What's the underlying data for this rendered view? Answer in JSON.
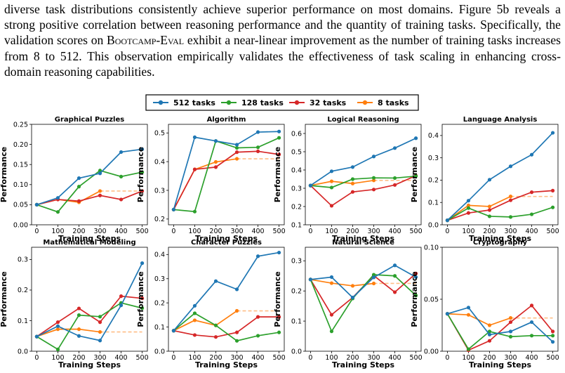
{
  "paragraph": {
    "p1": "diverse task distributions consistently achieve superior performance on most domains. Figure 5b reveals a strong positive correlation between reasoning performance and the quantity of training tasks. Specifically, the validation scores on ",
    "bench": "Bootcamp-Eval",
    "p2": " exhibit a near-linear improvement as the number of training tasks increases from 8 to 512. This observation empirically validates the effectiveness of task scaling in enhancing cross-domain reasoning capabilities."
  },
  "colors": {
    "512 tasks": "#1f77b4",
    "128 tasks": "#2ca02c",
    "32 tasks": "#d62728",
    "8 tasks": "#ff7f0e",
    "8 tasks dashed": "#ffbe86"
  },
  "legend": [
    "512 tasks",
    "128 tasks",
    "32 tasks",
    "8 tasks"
  ],
  "chart_data": [
    {
      "type": "line",
      "title": "Graphical Puzzles",
      "xlabel": "Training Steps",
      "ylabel": "Performance",
      "x": [
        0,
        100,
        200,
        300,
        400,
        500
      ],
      "xticks": [
        "0",
        "100",
        "200",
        "300",
        "400",
        "500"
      ],
      "ylim": [
        0,
        0.25
      ],
      "yticks": [
        "0.00",
        "0.05",
        "0.10",
        "0.15",
        "0.20",
        "0.25"
      ],
      "series": [
        {
          "name": "512 tasks",
          "values": [
            0.05,
            0.067,
            0.116,
            0.128,
            0.181,
            0.188
          ]
        },
        {
          "name": "128 tasks",
          "values": [
            0.05,
            0.032,
            0.095,
            0.135,
            0.12,
            0.131
          ]
        },
        {
          "name": "32 tasks",
          "values": [
            0.05,
            0.063,
            0.059,
            0.073,
            0.063,
            0.084
          ]
        },
        {
          "name": "8 tasks",
          "values": [
            0.05,
            0.063,
            0.056,
            0.084,
            null,
            null
          ],
          "plateau": 0.084
        }
      ]
    },
    {
      "type": "line",
      "title": "Algorithm",
      "xlabel": "Training Steps",
      "ylabel": "Performance",
      "x": [
        0,
        100,
        200,
        300,
        400,
        500
      ],
      "xticks": [
        "0",
        "100",
        "200",
        "300",
        "400",
        "500"
      ],
      "ylim": [
        0.18,
        0.53
      ],
      "yticks": [
        "0.2",
        "0.3",
        "0.4",
        "0.5"
      ],
      "series": [
        {
          "name": "512 tasks",
          "values": [
            0.233,
            0.485,
            0.472,
            0.459,
            0.503,
            0.505
          ]
        },
        {
          "name": "128 tasks",
          "values": [
            0.233,
            0.226,
            0.472,
            0.448,
            0.45,
            0.483
          ]
        },
        {
          "name": "32 tasks",
          "values": [
            0.233,
            0.373,
            0.381,
            0.433,
            0.436,
            0.425
          ]
        },
        {
          "name": "8 tasks",
          "values": [
            0.233,
            0.373,
            0.399,
            0.41,
            null,
            null
          ],
          "plateau": 0.41
        }
      ]
    },
    {
      "type": "line",
      "title": "Logical Reasoning",
      "xlabel": "Training Steps",
      "ylabel": "Performance",
      "x": [
        0,
        100,
        200,
        300,
        400,
        500
      ],
      "xticks": [
        "0",
        "100",
        "200",
        "300",
        "400",
        "500"
      ],
      "ylim": [
        0.1,
        0.65
      ],
      "yticks": [
        "0.1",
        "0.2",
        "0.3",
        "0.4",
        "0.5",
        "0.6"
      ],
      "series": [
        {
          "name": "512 tasks",
          "values": [
            0.315,
            0.393,
            0.416,
            0.474,
            0.52,
            0.574
          ]
        },
        {
          "name": "128 tasks",
          "values": [
            0.315,
            0.304,
            0.35,
            0.357,
            0.356,
            0.366
          ]
        },
        {
          "name": "32 tasks",
          "values": [
            0.315,
            0.204,
            0.28,
            0.293,
            0.318,
            0.369
          ]
        },
        {
          "name": "8 tasks",
          "values": [
            0.315,
            0.338,
            0.326,
            0.343,
            null,
            null
          ],
          "plateau": 0.343
        }
      ]
    },
    {
      "type": "line",
      "title": "Language Analysis",
      "xlabel": "Training Steps",
      "ylabel": "Performance",
      "x": [
        0,
        100,
        200,
        300,
        400,
        500
      ],
      "xticks": [
        "0",
        "100",
        "200",
        "300",
        "400",
        "500"
      ],
      "ylim": [
        0,
        0.45
      ],
      "yticks": [
        "0.0",
        "0.1",
        "0.2",
        "0.3",
        "0.4"
      ],
      "series": [
        {
          "name": "512 tasks",
          "values": [
            0.02,
            0.108,
            0.202,
            0.262,
            0.314,
            0.412
          ]
        },
        {
          "name": "128 tasks",
          "values": [
            0.02,
            0.075,
            0.038,
            0.035,
            0.047,
            0.078
          ]
        },
        {
          "name": "32 tasks",
          "values": [
            0.02,
            0.053,
            0.066,
            0.11,
            0.146,
            0.153
          ]
        },
        {
          "name": "8 tasks",
          "values": [
            0.02,
            0.087,
            0.082,
            0.127,
            null,
            null
          ],
          "plateau": 0.127
        }
      ]
    },
    {
      "type": "line",
      "title": "Mathematical Modeling",
      "xlabel": "Training Steps",
      "ylabel": "Performance",
      "x": [
        0,
        100,
        200,
        300,
        400,
        500
      ],
      "xticks": [
        "0",
        "100",
        "200",
        "300",
        "400",
        "500"
      ],
      "ylim": [
        0,
        0.34
      ],
      "yticks": [
        "0.0",
        "0.1",
        "0.2",
        "0.3"
      ],
      "series": [
        {
          "name": "512 tasks",
          "values": [
            0.048,
            0.082,
            0.05,
            0.035,
            0.15,
            0.288
          ]
        },
        {
          "name": "128 tasks",
          "values": [
            0.048,
            0.006,
            0.118,
            0.113,
            0.158,
            0.141
          ]
        },
        {
          "name": "32 tasks",
          "values": [
            0.048,
            0.095,
            0.14,
            0.095,
            0.18,
            0.173
          ]
        },
        {
          "name": "8 tasks",
          "values": [
            0.048,
            0.072,
            0.072,
            0.063,
            null,
            null
          ],
          "plateau": 0.063
        }
      ]
    },
    {
      "type": "line",
      "title": "Character Puzzles",
      "xlabel": "Training Steps",
      "ylabel": "Performance",
      "x": [
        0,
        100,
        200,
        300,
        400,
        500
      ],
      "xticks": [
        "0",
        "100",
        "200",
        "300",
        "400",
        "500"
      ],
      "ylim": [
        0,
        0.43
      ],
      "yticks": [
        "0.0",
        "0.1",
        "0.2",
        "0.3",
        "0.4"
      ],
      "series": [
        {
          "name": "512 tasks",
          "values": [
            0.085,
            0.188,
            0.29,
            0.256,
            0.393,
            0.408
          ]
        },
        {
          "name": "128 tasks",
          "values": [
            0.085,
            0.157,
            0.107,
            0.043,
            0.064,
            0.078
          ]
        },
        {
          "name": "32 tasks",
          "values": [
            0.085,
            0.067,
            0.059,
            0.078,
            0.142,
            0.142
          ]
        },
        {
          "name": "8 tasks",
          "values": [
            0.085,
            0.128,
            0.107,
            0.167,
            null,
            null
          ],
          "plateau": 0.167
        }
      ]
    },
    {
      "type": "line",
      "title": "Natural Science",
      "xlabel": "Training Steps",
      "ylabel": "Performance",
      "x": [
        0,
        100,
        200,
        300,
        400,
        500
      ],
      "xticks": [
        "0",
        "100",
        "200",
        "300",
        "400",
        "500"
      ],
      "ylim": [
        0,
        0.345
      ],
      "yticks": [
        "0.0",
        "0.1",
        "0.2",
        "0.3"
      ],
      "series": [
        {
          "name": "512 tasks",
          "values": [
            0.238,
            0.246,
            0.178,
            0.245,
            0.285,
            0.246
          ]
        },
        {
          "name": "128 tasks",
          "values": [
            0.238,
            0.066,
            0.175,
            0.254,
            0.25,
            0.185
          ]
        },
        {
          "name": "32 tasks",
          "values": [
            0.238,
            0.121,
            0.178,
            0.251,
            0.196,
            0.258
          ]
        },
        {
          "name": "8 tasks",
          "values": [
            0.238,
            0.226,
            0.217,
            0.225,
            null,
            null
          ],
          "plateau": 0.225
        }
      ]
    },
    {
      "type": "line",
      "title": "Cryptography",
      "xlabel": "Training Steps",
      "ylabel": "Performance",
      "x": [
        0,
        100,
        200,
        300,
        400,
        500
      ],
      "xticks": [
        "0",
        "100",
        "200",
        "300",
        "400",
        "500"
      ],
      "ylim": [
        0,
        0.1
      ],
      "yticks": [
        "0.00",
        "0.05",
        "0.10"
      ],
      "series": [
        {
          "name": "512 tasks",
          "values": [
            0.036,
            0.042,
            0.016,
            0.019,
            0.028,
            0.009
          ]
        },
        {
          "name": "128 tasks",
          "values": [
            0.036,
            0.002,
            0.019,
            0.014,
            0.015,
            0.015
          ]
        },
        {
          "name": "32 tasks",
          "values": [
            0.036,
            0.001,
            0.01,
            0.028,
            0.044,
            0.019
          ]
        },
        {
          "name": "8 tasks",
          "values": [
            0.036,
            0.035,
            0.025,
            0.032,
            null,
            null
          ],
          "plateau": 0.032
        }
      ]
    }
  ]
}
